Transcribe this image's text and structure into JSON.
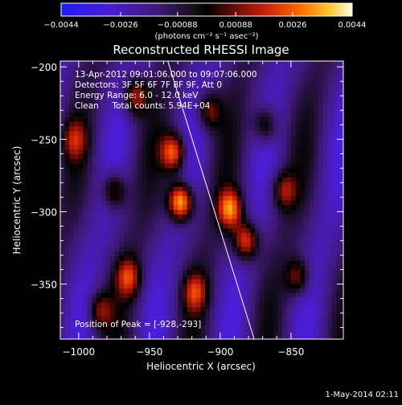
{
  "chart_data": {
    "type": "heatmap",
    "title": "Reconstructed RHESSI Image",
    "xlabel": "Heliocentric X (arcsec)",
    "ylabel": "Heliocentric Y (arcsec)",
    "xlim": [
      -1013,
      -813
    ],
    "ylim": [
      -388,
      -196
    ],
    "x_ticks": [
      -1000,
      -950,
      -900,
      -850
    ],
    "y_ticks": [
      -200,
      -250,
      -300,
      -350
    ],
    "x_tick_labels": [
      "−1000",
      "−950",
      "−900",
      "−850"
    ],
    "y_tick_labels": [
      "−200",
      "−250",
      "−300",
      "−350"
    ],
    "colorbar": {
      "range": [
        -0.0044,
        0.0044
      ],
      "ticks": [
        -0.0044,
        -0.0026,
        -0.00088,
        0.00088,
        0.0026,
        0.0044
      ],
      "tick_labels": [
        "−0.0044",
        "−0.0026",
        "−0.00088",
        "0.00088",
        "0.0026",
        "0.0044"
      ],
      "unit_label": "(photons cm⁻² s⁻¹ asec⁻²)"
    },
    "annotations": [
      "13-Apr-2012 09:01:06.000 to 09:07:06.000",
      "Detectors: 3F 5F 6F 7F 8F 9F, Att 0",
      "Energy Range: 6.0 - 12.0 keV",
      "Clean     Total counts: 5.94E+04"
    ],
    "peak_label": "Position of Peak = [-928,-293]",
    "peak_position": [
      -928,
      -293
    ],
    "limb_line": [
      [
        -937,
        -196
      ],
      [
        -876,
        -388
      ]
    ],
    "sources": [
      {
        "x": -928,
        "y": -293,
        "amp": 1.0
      },
      {
        "x": -933,
        "y": -259,
        "amp": 0.75
      },
      {
        "x": -893,
        "y": -298,
        "amp": 0.75
      },
      {
        "x": -882,
        "y": -320,
        "amp": 0.7
      },
      {
        "x": -960,
        "y": -220,
        "amp": 0.55
      },
      {
        "x": -975,
        "y": -285,
        "amp": 0.5
      },
      {
        "x": -965,
        "y": -345,
        "amp": 0.55
      },
      {
        "x": -985,
        "y": -368,
        "amp": 0.45
      },
      {
        "x": -908,
        "y": -230,
        "amp": 0.45
      },
      {
        "x": -868,
        "y": -240,
        "amp": 0.45
      },
      {
        "x": -855,
        "y": -285,
        "amp": 0.45
      },
      {
        "x": -845,
        "y": -345,
        "amp": 0.45
      },
      {
        "x": -918,
        "y": -355,
        "amp": 0.5
      },
      {
        "x": -1003,
        "y": -250,
        "amp": 0.4
      }
    ]
  },
  "footer": {
    "timestamp": "1-May-2014 02:11"
  }
}
